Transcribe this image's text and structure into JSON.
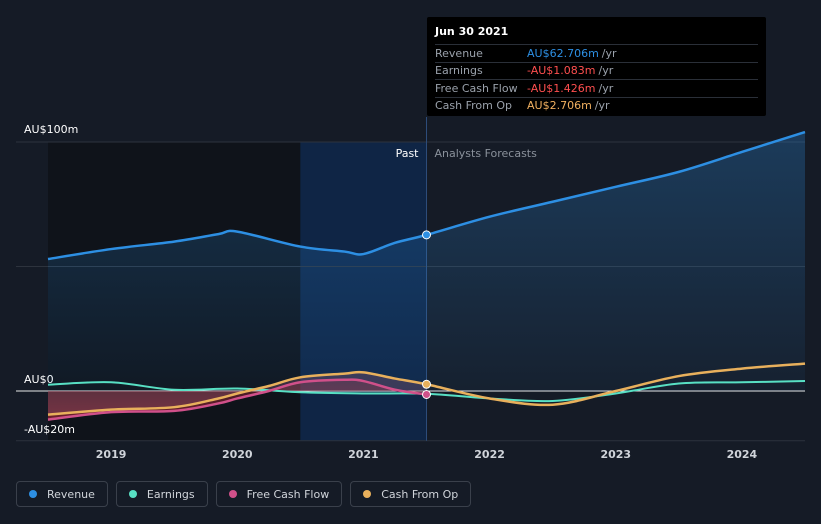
{
  "tooltip": {
    "date": "Jun 30 2021",
    "rows": [
      {
        "label": "Revenue",
        "value": "AU$62.706m",
        "unit": "/yr",
        "color": "#2d8fe3"
      },
      {
        "label": "Earnings",
        "value": "-AU$1.083m",
        "unit": "/yr",
        "color": "#ff4f4f"
      },
      {
        "label": "Free Cash Flow",
        "value": "-AU$1.426m",
        "unit": "/yr",
        "color": "#ff4f4f"
      },
      {
        "label": "Cash From Op",
        "value": "AU$2.706m",
        "unit": "/yr",
        "color": "#f0b060"
      }
    ]
  },
  "legend": [
    {
      "label": "Revenue",
      "color": "#2d8fe3"
    },
    {
      "label": "Earnings",
      "color": "#58e0c4"
    },
    {
      "label": "Free Cash Flow",
      "color": "#d0508a"
    },
    {
      "label": "Cash From Op",
      "color": "#e8b05c"
    }
  ],
  "chart_data": {
    "type": "line",
    "y_tick_labels": [
      "AU$100m",
      "AU$0",
      "-AU$20m"
    ],
    "ylim": [
      -20,
      100
    ],
    "x_tick_labels": [
      "2019",
      "2020",
      "2021",
      "2022",
      "2023",
      "2024"
    ],
    "xlim": [
      2018.5,
      2024.5
    ],
    "past_label": "Past",
    "forecast_label": "Analysts Forecasts",
    "past_end": 2021.5,
    "highlight_range": [
      2020.5,
      2021.5
    ],
    "series": [
      {
        "name": "Revenue",
        "color": "#2d8fe3",
        "x": [
          2018.5,
          2019.0,
          2019.5,
          2019.85,
          2020.0,
          2020.5,
          2020.85,
          2021.0,
          2021.25,
          2021.5,
          2022.0,
          2022.5,
          2023.0,
          2023.5,
          2024.0,
          2024.5
        ],
        "y": [
          53,
          57,
          60,
          63,
          64,
          58,
          56,
          55,
          59.5,
          62.7,
          70,
          76,
          82,
          88,
          96,
          104
        ]
      },
      {
        "name": "Earnings",
        "color": "#58e0c4",
        "x": [
          2018.5,
          2019.0,
          2019.5,
          2020.0,
          2020.5,
          2021.0,
          2021.5,
          2022.0,
          2022.5,
          2023.0,
          2023.5,
          2024.0,
          2024.5
        ],
        "y": [
          2.5,
          3.5,
          0.5,
          1,
          -0.5,
          -1,
          -1.1,
          -3,
          -4,
          -1,
          3,
          3.5,
          4
        ]
      },
      {
        "name": "Free Cash Flow",
        "color": "#d0508a",
        "x": [
          2018.5,
          2019.0,
          2019.5,
          2019.85,
          2020.0,
          2020.25,
          2020.5,
          2020.85,
          2021.0,
          2021.25,
          2021.5
        ],
        "y": [
          -11.5,
          -8.5,
          -8,
          -5,
          -3,
          0,
          3.5,
          4.5,
          4,
          0.5,
          -1.4
        ]
      },
      {
        "name": "Cash From Op",
        "color": "#e8b05c",
        "x": [
          2018.5,
          2019.0,
          2019.5,
          2019.85,
          2020.0,
          2020.25,
          2020.5,
          2020.85,
          2021.0,
          2021.25,
          2021.5,
          2022.0,
          2022.5,
          2023.0,
          2023.5,
          2024.0,
          2024.5
        ],
        "y": [
          -9.5,
          -7.5,
          -6.5,
          -3,
          -1,
          2,
          5.5,
          7,
          7.5,
          5,
          2.7,
          -3,
          -5.5,
          0,
          6,
          9,
          11
        ]
      }
    ]
  }
}
